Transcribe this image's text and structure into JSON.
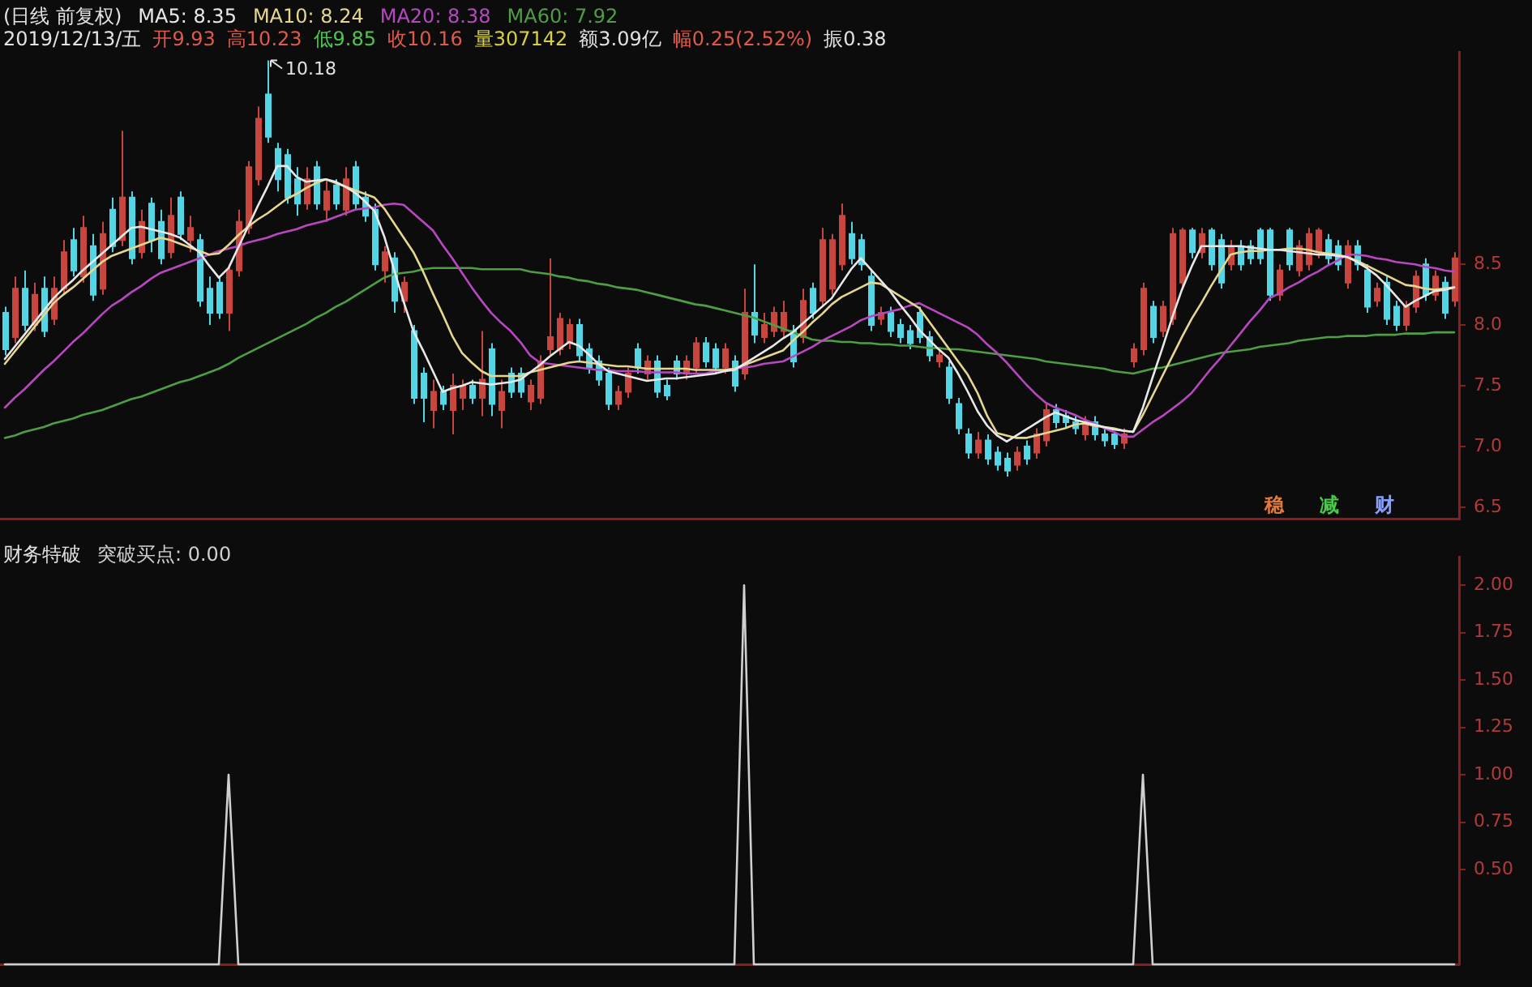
{
  "chart_data": [
    {
      "type": "candlestick",
      "legend_title": "(日线 前复权)",
      "legend": "top left",
      "tick_labels": "y",
      "ylim": [
        6.4,
        10.25
      ],
      "yticks": [
        8.5,
        {
          "value": 8,
          "label": "8.0"
        },
        7.5,
        {
          "value": 7,
          "label": "7.0"
        },
        6.5
      ],
      "categories": [
        null,
        null,
        null,
        null,
        null,
        null,
        null,
        null,
        null,
        null,
        null,
        null,
        null,
        null,
        null,
        null,
        null,
        null,
        null,
        null,
        null,
        null,
        null,
        null,
        null,
        null,
        null,
        null,
        null,
        null,
        null,
        null,
        null,
        null,
        null,
        null,
        null,
        null,
        null,
        null,
        null,
        null,
        null,
        null,
        null,
        null,
        null,
        null,
        null,
        null,
        null,
        null,
        null,
        null,
        null,
        null,
        null,
        null,
        null,
        null,
        null,
        null,
        null,
        null,
        null,
        null,
        null,
        null,
        null,
        null,
        null,
        null,
        null,
        null,
        null,
        null,
        null,
        null,
        null,
        null,
        null,
        null,
        null,
        null,
        null,
        null,
        null,
        null,
        null,
        null,
        null,
        null,
        null,
        null,
        null,
        null,
        null,
        null,
        null,
        null,
        null,
        null,
        null,
        null,
        null,
        null,
        null,
        null,
        null,
        null,
        null,
        null,
        null,
        null,
        null,
        null,
        null,
        null,
        null,
        null,
        null,
        null,
        null,
        null,
        null,
        null,
        null,
        null,
        null,
        null,
        null,
        null,
        null,
        null,
        null,
        null,
        null,
        null,
        null,
        null,
        null,
        null,
        null,
        null,
        null,
        null,
        null,
        null,
        null,
        null
      ],
      "ohlc": [
        [
          8.1,
          8.15,
          7.75,
          7.8
        ],
        [
          7.9,
          8.4,
          7.85,
          8.3
        ],
        [
          8.3,
          8.45,
          7.95,
          8.0
        ],
        [
          8.0,
          8.35,
          7.95,
          8.25
        ],
        [
          8.3,
          8.4,
          7.9,
          7.95
        ],
        [
          8.05,
          8.4,
          8.0,
          8.3
        ],
        [
          8.3,
          8.7,
          8.25,
          8.6
        ],
        [
          8.7,
          8.8,
          8.4,
          8.45
        ],
        [
          8.4,
          8.9,
          8.35,
          8.8
        ],
        [
          8.65,
          8.75,
          8.2,
          8.25
        ],
        [
          8.3,
          8.85,
          8.25,
          8.75
        ],
        [
          8.95,
          9.05,
          8.6,
          8.65
        ],
        [
          8.7,
          9.6,
          8.65,
          9.05
        ],
        [
          9.05,
          9.1,
          8.5,
          8.55
        ],
        [
          8.6,
          8.95,
          8.55,
          8.85
        ],
        [
          9.0,
          9.05,
          8.6,
          8.7
        ],
        [
          8.85,
          8.95,
          8.5,
          8.55
        ],
        [
          8.6,
          9.05,
          8.55,
          8.9
        ],
        [
          9.05,
          9.1,
          8.7,
          8.75
        ],
        [
          8.7,
          8.9,
          8.6,
          8.8
        ],
        [
          8.7,
          8.75,
          8.15,
          8.2
        ],
        [
          8.3,
          8.4,
          8.0,
          8.1
        ],
        [
          8.35,
          8.4,
          8.05,
          8.1
        ],
        [
          8.1,
          8.5,
          7.95,
          8.45
        ],
        [
          8.45,
          8.95,
          8.4,
          8.85
        ],
        [
          8.8,
          9.35,
          8.75,
          9.3
        ],
        [
          9.2,
          9.8,
          9.15,
          9.7
        ],
        [
          9.9,
          10.18,
          9.5,
          9.55
        ],
        [
          9.45,
          9.5,
          9.1,
          9.2
        ],
        [
          9.4,
          9.45,
          9.0,
          9.05
        ],
        [
          9.2,
          9.3,
          8.9,
          9.0
        ],
        [
          9.0,
          9.3,
          8.95,
          9.2
        ],
        [
          9.3,
          9.35,
          8.95,
          9.0
        ],
        [
          8.95,
          9.2,
          8.85,
          9.1
        ],
        [
          9.15,
          9.2,
          8.95,
          9.0
        ],
        [
          8.95,
          9.3,
          8.9,
          9.2
        ],
        [
          9.3,
          9.35,
          8.95,
          9.0
        ],
        [
          9.05,
          9.1,
          8.85,
          8.9
        ],
        [
          8.95,
          9.0,
          8.45,
          8.5
        ],
        [
          8.45,
          8.65,
          8.35,
          8.6
        ],
        [
          8.55,
          8.6,
          8.1,
          8.2
        ],
        [
          8.2,
          8.4,
          8.1,
          8.35
        ],
        [
          7.95,
          8.0,
          7.35,
          7.4
        ],
        [
          7.6,
          7.65,
          7.2,
          7.4
        ],
        [
          7.3,
          7.55,
          7.15,
          7.45
        ],
        [
          7.45,
          7.5,
          7.3,
          7.35
        ],
        [
          7.3,
          7.6,
          7.1,
          7.5
        ],
        [
          7.4,
          7.55,
          7.3,
          7.5
        ],
        [
          7.5,
          7.55,
          7.35,
          7.4
        ],
        [
          7.4,
          7.95,
          7.25,
          7.55
        ],
        [
          7.8,
          7.85,
          7.25,
          7.35
        ],
        [
          7.3,
          7.55,
          7.15,
          7.45
        ],
        [
          7.6,
          7.65,
          7.4,
          7.45
        ],
        [
          7.6,
          7.65,
          7.4,
          7.45
        ],
        [
          7.37,
          7.55,
          7.3,
          7.5
        ],
        [
          7.4,
          7.75,
          7.35,
          7.7
        ],
        [
          7.8,
          8.55,
          7.75,
          7.9
        ],
        [
          7.8,
          8.1,
          7.75,
          8.05
        ],
        [
          7.85,
          8.05,
          7.8,
          8.0
        ],
        [
          8.0,
          8.05,
          7.7,
          7.75
        ],
        [
          7.8,
          7.85,
          7.6,
          7.65
        ],
        [
          7.7,
          7.75,
          7.5,
          7.55
        ],
        [
          7.6,
          7.65,
          7.3,
          7.35
        ],
        [
          7.35,
          7.5,
          7.3,
          7.45
        ],
        [
          7.45,
          7.65,
          7.4,
          7.6
        ],
        [
          7.8,
          7.85,
          7.6,
          7.65
        ],
        [
          7.6,
          7.75,
          7.55,
          7.7
        ],
        [
          7.7,
          7.75,
          7.4,
          7.45
        ],
        [
          7.5,
          7.55,
          7.38,
          7.42
        ],
        [
          7.7,
          7.75,
          7.55,
          7.6
        ],
        [
          7.6,
          7.75,
          7.55,
          7.7
        ],
        [
          7.65,
          7.9,
          7.6,
          7.85
        ],
        [
          7.85,
          7.9,
          7.65,
          7.7
        ],
        [
          7.8,
          7.85,
          7.6,
          7.65
        ],
        [
          7.65,
          7.85,
          7.6,
          7.8
        ],
        [
          7.7,
          7.75,
          7.45,
          7.5
        ],
        [
          7.6,
          8.3,
          7.55,
          8.1
        ],
        [
          8.1,
          8.5,
          7.85,
          7.92
        ],
        [
          7.9,
          8.1,
          7.85,
          8.0
        ],
        [
          7.95,
          8.15,
          7.9,
          8.1
        ],
        [
          7.95,
          8.2,
          7.9,
          8.1
        ],
        [
          7.95,
          8.0,
          7.65,
          7.7
        ],
        [
          7.9,
          8.3,
          7.85,
          8.2
        ],
        [
          8.3,
          8.35,
          8.05,
          8.1
        ],
        [
          8.2,
          8.8,
          8.15,
          8.7
        ],
        [
          8.3,
          8.75,
          8.25,
          8.7
        ],
        [
          8.5,
          9.0,
          8.45,
          8.9
        ],
        [
          8.75,
          8.85,
          8.5,
          8.55
        ],
        [
          8.7,
          8.75,
          8.45,
          8.5
        ],
        [
          8.4,
          8.45,
          7.95,
          8.0
        ],
        [
          8.05,
          8.15,
          8.0,
          8.1
        ],
        [
          8.1,
          8.15,
          7.9,
          7.95
        ],
        [
          8.0,
          8.05,
          7.85,
          7.9
        ],
        [
          7.95,
          8.0,
          7.8,
          7.85
        ],
        [
          8.1,
          8.15,
          7.85,
          7.9
        ],
        [
          7.9,
          7.95,
          7.7,
          7.75
        ],
        [
          7.7,
          7.8,
          7.65,
          7.75
        ],
        [
          7.65,
          7.7,
          7.35,
          7.4
        ],
        [
          7.35,
          7.4,
          7.1,
          7.15
        ],
        [
          7.1,
          7.15,
          6.9,
          6.95
        ],
        [
          6.95,
          7.12,
          6.9,
          7.05
        ],
        [
          7.05,
          7.1,
          6.85,
          6.9
        ],
        [
          6.95,
          7.0,
          6.8,
          6.85
        ],
        [
          6.9,
          6.95,
          6.75,
          6.8
        ],
        [
          6.85,
          7.0,
          6.8,
          6.95
        ],
        [
          7.0,
          7.05,
          6.85,
          6.9
        ],
        [
          6.95,
          7.15,
          6.9,
          7.1
        ],
        [
          7.05,
          7.35,
          7.0,
          7.3
        ],
        [
          7.3,
          7.35,
          7.15,
          7.2
        ],
        [
          7.25,
          7.3,
          7.15,
          7.2
        ],
        [
          7.2,
          7.25,
          7.1,
          7.15
        ],
        [
          7.1,
          7.25,
          7.05,
          7.2
        ],
        [
          7.2,
          7.25,
          7.05,
          7.1
        ],
        [
          7.1,
          7.15,
          7.0,
          7.05
        ],
        [
          7.1,
          7.12,
          6.98,
          7.02
        ],
        [
          7.03,
          7.15,
          6.98,
          7.1
        ],
        [
          7.7,
          7.85,
          7.65,
          7.8
        ],
        [
          7.8,
          8.35,
          7.75,
          8.3
        ],
        [
          8.15,
          8.2,
          7.85,
          7.9
        ],
        [
          7.95,
          8.2,
          7.9,
          8.15
        ],
        [
          8.05,
          8.8,
          8.0,
          8.75
        ],
        [
          8.35,
          8.8,
          8.3,
          8.78
        ],
        [
          8.78,
          8.8,
          8.55,
          8.6
        ],
        [
          8.6,
          8.8,
          8.55,
          8.75
        ],
        [
          8.78,
          8.8,
          8.45,
          8.5
        ],
        [
          8.7,
          8.75,
          8.3,
          8.35
        ],
        [
          8.5,
          8.7,
          8.45,
          8.65
        ],
        [
          8.65,
          8.7,
          8.45,
          8.5
        ],
        [
          8.65,
          8.7,
          8.5,
          8.55
        ],
        [
          8.78,
          8.8,
          8.5,
          8.55
        ],
        [
          8.78,
          8.8,
          8.2,
          8.25
        ],
        [
          8.25,
          8.5,
          8.2,
          8.45
        ],
        [
          8.78,
          8.8,
          8.45,
          8.5
        ],
        [
          8.45,
          8.7,
          8.4,
          8.65
        ],
        [
          8.5,
          8.8,
          8.45,
          8.75
        ],
        [
          8.6,
          8.8,
          8.55,
          8.78
        ],
        [
          8.7,
          8.75,
          8.5,
          8.55
        ],
        [
          8.65,
          8.7,
          8.45,
          8.5
        ],
        [
          8.35,
          8.7,
          8.3,
          8.65
        ],
        [
          8.65,
          8.7,
          8.45,
          8.5
        ],
        [
          8.45,
          8.5,
          8.1,
          8.15
        ],
        [
          8.2,
          8.35,
          8.15,
          8.3
        ],
        [
          8.35,
          8.4,
          8.0,
          8.05
        ],
        [
          8.15,
          8.2,
          7.95,
          8.0
        ],
        [
          8.0,
          8.2,
          7.95,
          8.15
        ],
        [
          8.15,
          8.45,
          8.1,
          8.4
        ],
        [
          8.5,
          8.55,
          8.2,
          8.25
        ],
        [
          8.25,
          8.45,
          8.2,
          8.4
        ],
        [
          8.35,
          8.4,
          8.05,
          8.1
        ],
        [
          8.2,
          8.6,
          8.15,
          8.55
        ]
      ],
      "colors": [
        "#52d6e6",
        "#c8463e",
        "#52d6e6",
        "#c8463e",
        "#52d6e6",
        "#c8463e",
        "#c8463e",
        "#52d6e6",
        "#c8463e",
        "#52d6e6",
        "#c8463e",
        "#52d6e6",
        "#c8463e",
        "#52d6e6",
        "#c8463e",
        "#52d6e6",
        "#52d6e6",
        "#c8463e",
        "#52d6e6",
        "#c8463e",
        "#52d6e6",
        "#52d6e6",
        "#52d6e6",
        "#c8463e",
        "#c8463e",
        "#c8463e",
        "#c8463e",
        "#52d6e6",
        "#52d6e6",
        "#52d6e6",
        "#52d6e6",
        "#c8463e",
        "#52d6e6",
        "#c8463e",
        "#52d6e6",
        "#c8463e",
        "#52d6e6",
        "#52d6e6",
        "#52d6e6",
        "#c8463e",
        "#52d6e6",
        "#c8463e",
        "#52d6e6",
        "#52d6e6",
        "#c8463e",
        "#52d6e6",
        "#c8463e",
        "#c8463e",
        "#52d6e6",
        "#c8463e",
        "#52d6e6",
        "#c8463e",
        "#52d6e6",
        "#52d6e6",
        "#c8463e",
        "#c8463e",
        "#c8463e",
        "#c8463e",
        "#c8463e",
        "#52d6e6",
        "#52d6e6",
        "#52d6e6",
        "#52d6e6",
        "#c8463e",
        "#c8463e",
        "#52d6e6",
        "#c8463e",
        "#52d6e6",
        "#52d6e6",
        "#52d6e6",
        "#c8463e",
        "#c8463e",
        "#52d6e6",
        "#52d6e6",
        "#c8463e",
        "#52d6e6",
        "#c8463e",
        "#52d6e6",
        "#c8463e",
        "#c8463e",
        "#c8463e",
        "#52d6e6",
        "#c8463e",
        "#52d6e6",
        "#c8463e",
        "#c8463e",
        "#c8463e",
        "#52d6e6",
        "#52d6e6",
        "#52d6e6",
        "#c8463e",
        "#52d6e6",
        "#52d6e6",
        "#52d6e6",
        "#52d6e6",
        "#52d6e6",
        "#c8463e",
        "#52d6e6",
        "#52d6e6",
        "#52d6e6",
        "#c8463e",
        "#52d6e6",
        "#52d6e6",
        "#52d6e6",
        "#c8463e",
        "#52d6e6",
        "#c8463e",
        "#c8463e",
        "#52d6e6",
        "#52d6e6",
        "#52d6e6",
        "#c8463e",
        "#52d6e6",
        "#52d6e6",
        "#52d6e6",
        "#c8463e",
        "#c8463e",
        "#c8463e",
        "#52d6e6",
        "#c8463e",
        "#c8463e",
        "#c8463e",
        "#52d6e6",
        "#c8463e",
        "#52d6e6",
        "#52d6e6",
        "#c8463e",
        "#52d6e6",
        "#52d6e6",
        "#52d6e6",
        "#52d6e6",
        "#c8463e",
        "#52d6e6",
        "#c8463e",
        "#c8463e",
        "#c8463e",
        "#52d6e6",
        "#52d6e6",
        "#c8463e",
        "#52d6e6",
        "#52d6e6",
        "#c8463e",
        "#52d6e6",
        "#52d6e6",
        "#c8463e",
        "#c8463e",
        "#52d6e6",
        "#c8463e",
        "#52d6e6",
        "#c8463e"
      ],
      "series": [
        {
          "name": "MA5: 8.35",
          "type": "line",
          "color": "#e8e8e8",
          "values": [
            7.72,
            7.82,
            7.92,
            8.02,
            8.12,
            8.22,
            8.3,
            8.37,
            8.45,
            8.52,
            8.59,
            8.66,
            8.73,
            8.8,
            8.81,
            8.79,
            8.77,
            8.75,
            8.72,
            8.66,
            8.6,
            8.49,
            8.39,
            8.47,
            8.64,
            8.81,
            8.98,
            9.14,
            9.31,
            9.31,
            9.22,
            9.18,
            9.19,
            9.2,
            9.18,
            9.14,
            9.09,
            9.02,
            8.94,
            8.73,
            8.46,
            8.19,
            7.95,
            7.79,
            7.62,
            7.45,
            7.48,
            7.5,
            7.53,
            7.52,
            7.51,
            7.52,
            7.53,
            7.55,
            7.61,
            7.67,
            7.74,
            7.8,
            7.86,
            7.83,
            7.76,
            7.68,
            7.62,
            7.6,
            7.58,
            7.56,
            7.54,
            7.55,
            7.56,
            7.56,
            7.57,
            7.58,
            7.59,
            7.6,
            7.62,
            7.63,
            7.68,
            7.73,
            7.78,
            7.83,
            7.89,
            7.94,
            8.01,
            8.08,
            8.15,
            8.22,
            8.34,
            8.46,
            8.55,
            8.46,
            8.37,
            8.28,
            8.17,
            8.07,
            7.96,
            7.88,
            7.8,
            7.73,
            7.6,
            7.45,
            7.29,
            7.17,
            7.09,
            7.04,
            7.09,
            7.14,
            7.19,
            7.24,
            7.28,
            7.25,
            7.22,
            7.2,
            7.18,
            7.16,
            7.14,
            7.13,
            7.12,
            7.32,
            7.57,
            7.81,
            8.06,
            8.29,
            8.48,
            8.65,
            8.65,
            8.65,
            8.65,
            8.65,
            8.64,
            8.63,
            8.62,
            8.62,
            8.61,
            8.6,
            8.59,
            8.58,
            8.58,
            8.57,
            8.56,
            8.52,
            8.47,
            8.41,
            8.33,
            8.24,
            8.15,
            8.2,
            8.24,
            8.28,
            8.29,
            8.31
          ]
        },
        {
          "name": "MA10: 8.24",
          "type": "line",
          "color": "#e6d68e",
          "values": [
            7.68,
            7.78,
            7.88,
            7.98,
            8.08,
            8.18,
            8.25,
            8.31,
            8.38,
            8.45,
            8.52,
            8.57,
            8.6,
            8.63,
            8.66,
            8.69,
            8.72,
            8.7,
            8.67,
            8.64,
            8.61,
            8.58,
            8.59,
            8.66,
            8.74,
            8.81,
            8.87,
            8.92,
            8.98,
            9.04,
            9.08,
            9.13,
            9.17,
            9.2,
            9.17,
            9.14,
            9.11,
            9.08,
            9.05,
            8.96,
            8.84,
            8.72,
            8.6,
            8.44,
            8.26,
            8.09,
            7.91,
            7.77,
            7.69,
            7.62,
            7.58,
            7.58,
            7.58,
            7.58,
            7.61,
            7.63,
            7.65,
            7.67,
            7.69,
            7.7,
            7.69,
            7.68,
            7.67,
            7.66,
            7.66,
            7.65,
            7.64,
            7.64,
            7.64,
            7.64,
            7.64,
            7.63,
            7.63,
            7.63,
            7.63,
            7.64,
            7.67,
            7.7,
            7.73,
            7.76,
            7.79,
            7.87,
            7.94,
            8.02,
            8.09,
            8.17,
            8.23,
            8.27,
            8.31,
            8.35,
            8.34,
            8.29,
            8.24,
            8.19,
            8.14,
            8.03,
            7.92,
            7.81,
            7.7,
            7.59,
            7.44,
            7.25,
            7.11,
            7.09,
            7.07,
            7.07,
            7.09,
            7.11,
            7.13,
            7.15,
            7.18,
            7.19,
            7.17,
            7.16,
            7.15,
            7.13,
            7.12,
            7.26,
            7.42,
            7.58,
            7.74,
            7.9,
            8.05,
            8.18,
            8.32,
            8.45,
            8.58,
            8.6,
            8.61,
            8.61,
            8.62,
            8.62,
            8.63,
            8.63,
            8.62,
            8.6,
            8.59,
            8.58,
            8.56,
            8.53,
            8.49,
            8.45,
            8.41,
            8.37,
            8.33,
            8.32,
            8.3,
            8.29,
            8.3,
            8.31
          ]
        },
        {
          "name": "MA20: 8.38",
          "type": "line",
          "color": "#b848c0",
          "values": [
            7.32,
            7.4,
            7.47,
            7.55,
            7.63,
            7.7,
            7.78,
            7.86,
            7.93,
            8.01,
            8.09,
            8.16,
            8.21,
            8.27,
            8.32,
            8.38,
            8.43,
            8.46,
            8.49,
            8.52,
            8.55,
            8.58,
            8.61,
            8.63,
            8.65,
            8.68,
            8.7,
            8.72,
            8.75,
            8.77,
            8.79,
            8.82,
            8.84,
            8.86,
            8.89,
            8.92,
            8.95,
            8.96,
            8.97,
            8.99,
            9.0,
            8.99,
            8.92,
            8.85,
            8.78,
            8.66,
            8.55,
            8.43,
            8.31,
            8.2,
            8.1,
            8.02,
            7.95,
            7.86,
            7.75,
            7.69,
            7.68,
            7.67,
            7.66,
            7.65,
            7.64,
            7.63,
            7.63,
            7.62,
            7.62,
            7.62,
            7.61,
            7.61,
            7.61,
            7.61,
            7.6,
            7.6,
            7.6,
            7.62,
            7.63,
            7.64,
            7.65,
            7.66,
            7.68,
            7.69,
            7.7,
            7.74,
            7.78,
            7.82,
            7.87,
            7.91,
            7.95,
            7.99,
            8.04,
            8.07,
            8.09,
            8.11,
            8.13,
            8.16,
            8.18,
            8.14,
            8.1,
            8.06,
            8.02,
            7.98,
            7.92,
            7.84,
            7.77,
            7.69,
            7.6,
            7.51,
            7.43,
            7.36,
            7.32,
            7.29,
            7.26,
            7.22,
            7.19,
            7.15,
            7.12,
            7.08,
            7.08,
            7.14,
            7.2,
            7.25,
            7.31,
            7.37,
            7.44,
            7.54,
            7.64,
            7.73,
            7.83,
            7.93,
            8.03,
            8.12,
            8.22,
            8.26,
            8.31,
            8.35,
            8.4,
            8.44,
            8.49,
            8.53,
            8.58,
            8.58,
            8.57,
            8.55,
            8.54,
            8.52,
            8.51,
            8.5,
            8.48,
            8.47,
            8.45,
            8.44
          ]
        },
        {
          "name": "MA60: 7.92",
          "type": "line",
          "color": "#4e9e44",
          "values": [
            7.07,
            7.09,
            7.12,
            7.14,
            7.16,
            7.19,
            7.21,
            7.23,
            7.26,
            7.28,
            7.3,
            7.33,
            7.36,
            7.39,
            7.41,
            7.44,
            7.47,
            7.5,
            7.53,
            7.55,
            7.58,
            7.61,
            7.64,
            7.68,
            7.73,
            7.77,
            7.81,
            7.85,
            7.89,
            7.93,
            7.97,
            8.01,
            8.06,
            8.1,
            8.15,
            8.19,
            8.24,
            8.29,
            8.34,
            8.39,
            8.42,
            8.43,
            8.44,
            8.46,
            8.47,
            8.47,
            8.47,
            8.47,
            8.47,
            8.46,
            8.46,
            8.46,
            8.46,
            8.46,
            8.44,
            8.43,
            8.42,
            8.4,
            8.39,
            8.37,
            8.36,
            8.34,
            8.33,
            8.31,
            8.3,
            8.29,
            8.27,
            8.25,
            8.23,
            8.21,
            8.19,
            8.17,
            8.16,
            8.14,
            8.12,
            8.1,
            8.08,
            8.06,
            8.03,
            8.0,
            7.97,
            7.94,
            7.91,
            7.88,
            7.87,
            7.87,
            7.86,
            7.86,
            7.85,
            7.85,
            7.84,
            7.84,
            7.83,
            7.83,
            7.82,
            7.81,
            7.81,
            7.8,
            7.8,
            7.79,
            7.78,
            7.77,
            7.76,
            7.75,
            7.74,
            7.73,
            7.72,
            7.7,
            7.69,
            7.68,
            7.67,
            7.66,
            7.65,
            7.64,
            7.62,
            7.61,
            7.6,
            7.62,
            7.64,
            7.65,
            7.67,
            7.69,
            7.71,
            7.73,
            7.75,
            7.77,
            7.78,
            7.79,
            7.8,
            7.82,
            7.83,
            7.84,
            7.85,
            7.87,
            7.88,
            7.89,
            7.9,
            7.9,
            7.91,
            7.91,
            7.91,
            7.92,
            7.92,
            7.92,
            7.93,
            7.93,
            7.93,
            7.94,
            7.94,
            7.94
          ]
        }
      ],
      "annotations": [
        "2019/12/13/五 开9.93 高10.23 低9.85 收10.16 量307142 额3.09亿 幅0.25(2.52%) 振0.38",
        "10.18",
        "稳 减 财"
      ]
    },
    {
      "type": "line",
      "title": "财务特破",
      "legend": "top left",
      "tick_labels": "y",
      "ylim": [
        0,
        2.15
      ],
      "yticks": [
        {
          "value": 2,
          "label": "2.00"
        },
        1.75,
        {
          "value": 1.5,
          "label": "1.50"
        },
        1.25,
        {
          "value": 1,
          "label": "1.00"
        },
        0.75,
        {
          "value": 0.5,
          "label": "0.50"
        }
      ],
      "categories": [
        null,
        null,
        null,
        null,
        null,
        null,
        null,
        null,
        null,
        null,
        null,
        null,
        null,
        null,
        null,
        null,
        null,
        null,
        null,
        null,
        null,
        null,
        null,
        null,
        null,
        null,
        null,
        null,
        null,
        null,
        null,
        null,
        null,
        null,
        null,
        null,
        null,
        null,
        null,
        null,
        null,
        null,
        null,
        null,
        null,
        null,
        null,
        null,
        null,
        null,
        null,
        null,
        null,
        null,
        null,
        null,
        null,
        null,
        null,
        null,
        null,
        null,
        null,
        null,
        null,
        null,
        null,
        null,
        null,
        null,
        null,
        null,
        null,
        null,
        null,
        null,
        null,
        null,
        null,
        null,
        null,
        null,
        null,
        null,
        null,
        null,
        null,
        null,
        null,
        null,
        null,
        null,
        null,
        null,
        null,
        null,
        null,
        null,
        null,
        null,
        null,
        null,
        null,
        null,
        null,
        null,
        null,
        null,
        null,
        null,
        null,
        null,
        null,
        null,
        null,
        null,
        null,
        null,
        null,
        null,
        null,
        null,
        null,
        null,
        null,
        null,
        null,
        null,
        null,
        null,
        null,
        null,
        null,
        null,
        null,
        null,
        null,
        null,
        null,
        null,
        null,
        null,
        null,
        null,
        null,
        null,
        null,
        null,
        null,
        null
      ],
      "series": [
        {
          "name": "突破买点: 0.00",
          "color": "#d0d0d0",
          "values": [
            0,
            0,
            0,
            0,
            0,
            0,
            0,
            0,
            0,
            0,
            0,
            0,
            0,
            0,
            0,
            0,
            0,
            0,
            0,
            0,
            0,
            0,
            0,
            1,
            0,
            0,
            0,
            0,
            0,
            0,
            0,
            0,
            0,
            0,
            0,
            0,
            0,
            0,
            0,
            0,
            0,
            0,
            0,
            0,
            0,
            0,
            0,
            0,
            0,
            0,
            0,
            0,
            0,
            0,
            0,
            0,
            0,
            0,
            0,
            0,
            0,
            0,
            0,
            0,
            0,
            0,
            0,
            0,
            0,
            0,
            0,
            0,
            0,
            0,
            0,
            0,
            2,
            0,
            0,
            0,
            0,
            0,
            0,
            0,
            0,
            0,
            0,
            0,
            0,
            0,
            0,
            0,
            0,
            0,
            0,
            0,
            0,
            0,
            0,
            0,
            0,
            0,
            0,
            0,
            0,
            0,
            0,
            0,
            0,
            0,
            0,
            0,
            0,
            0,
            0,
            0,
            0,
            1,
            0,
            0,
            0,
            0,
            0,
            0,
            0,
            0,
            0,
            0,
            0,
            0,
            0,
            0,
            0,
            0,
            0,
            0,
            0,
            0,
            0,
            0,
            0,
            0,
            0,
            0,
            0,
            0,
            0,
            0,
            0,
            0
          ]
        }
      ]
    }
  ]
}
